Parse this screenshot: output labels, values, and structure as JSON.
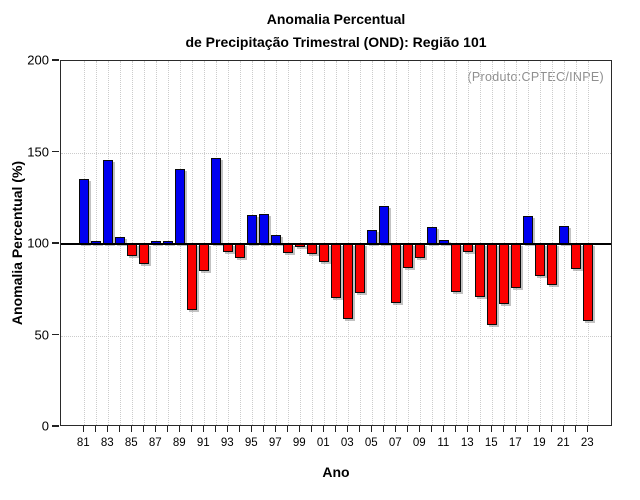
{
  "header": {
    "title_line1": "Anomalia Percentual",
    "title_line2": "de Precipitação Trimestral (OND): Região 101",
    "annotation": "(Produto:CPTEC/INPE)"
  },
  "colors": {
    "bar_above_baseline": "#0000f0",
    "bar_below_baseline": "#fb0000",
    "baseline_line": "#000000",
    "annotation_text": "#8f8f8f",
    "grid_dotted": "#cccccc",
    "frame": "#2a2a2a"
  },
  "chart_data": {
    "type": "bar",
    "title": "Anomalia Percentual de Precipitação Trimestral (OND): Região 101",
    "xlabel": "Ano",
    "ylabel": "Anomalia Percentual (%)",
    "baseline": 100,
    "ylim": [
      0,
      200
    ],
    "yticks": [
      0,
      50,
      100,
      150,
      200
    ],
    "ytick_labels": [
      "0",
      "50",
      "100",
      "150",
      "200"
    ],
    "grid_y": [
      50,
      150
    ],
    "legend": "none",
    "grid": "dotted vertical per year, dotted horizontal at 50 and 150, solid black line at 100",
    "years": [
      1981,
      1982,
      1983,
      1984,
      1985,
      1986,
      1987,
      1988,
      1989,
      1990,
      1991,
      1992,
      1993,
      1994,
      1995,
      1996,
      1997,
      1998,
      1999,
      2000,
      2001,
      2002,
      2003,
      2004,
      2005,
      2006,
      2007,
      2008,
      2009,
      2010,
      2011,
      2012,
      2013,
      2014,
      2015,
      2016,
      2017,
      2018,
      2019,
      2020,
      2021,
      2022,
      2023
    ],
    "values": [
      135.5,
      101.5,
      146,
      104,
      93.5,
      89,
      101.5,
      101.5,
      141,
      64,
      85,
      147,
      95.5,
      92.5,
      116,
      116.5,
      105,
      95,
      98.5,
      94.5,
      90,
      70.5,
      59,
      73,
      107.5,
      120.5,
      68,
      87,
      92.5,
      109.5,
      102,
      74,
      95.5,
      71,
      55.5,
      67,
      76,
      115.5,
      82.5,
      77.5,
      110,
      86.5,
      58
    ],
    "xtick_labels": [
      "81",
      "83",
      "85",
      "87",
      "89",
      "91",
      "93",
      "95",
      "97",
      "99",
      "01",
      "03",
      "05",
      "07",
      "09",
      "11",
      "13",
      "15",
      "17",
      "19",
      "21",
      "23"
    ]
  }
}
